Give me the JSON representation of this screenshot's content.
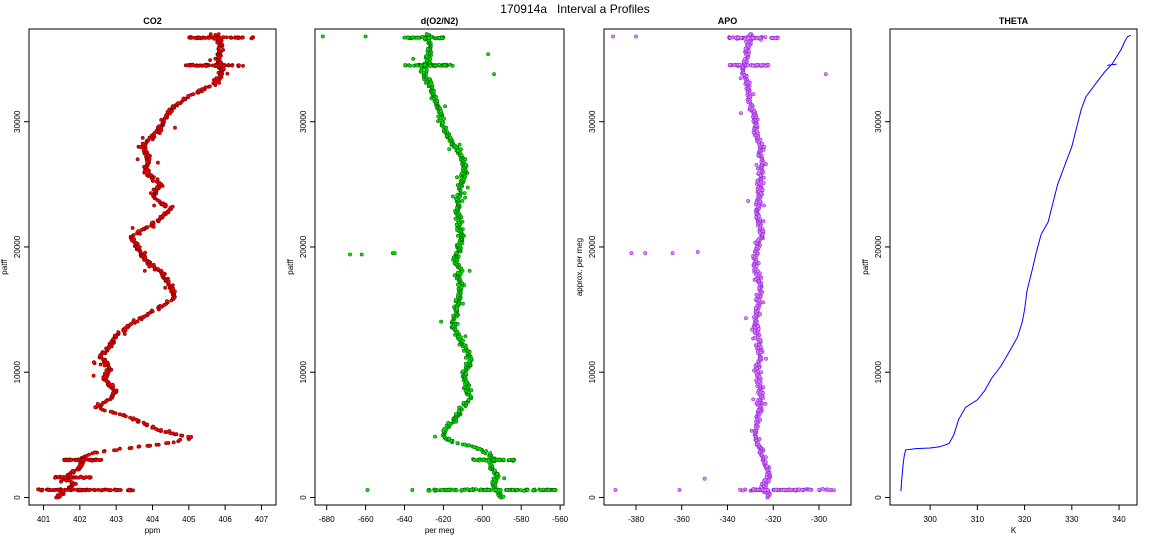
{
  "figure": {
    "title": "170914a   Interval a Profiles"
  },
  "chart_data": [
    {
      "type": "scatter",
      "title": "CO2",
      "xlabel": "ppm",
      "ylabel": "patff",
      "xlim": [
        400.6,
        407.4
      ],
      "ylim": [
        -600,
        37400
      ],
      "xticks": [
        401,
        402,
        403,
        404,
        405,
        406,
        407
      ],
      "yticks": [
        0,
        10000,
        20000,
        30000
      ],
      "colors": {
        "points": "#ff0000",
        "outline": "#7a0000"
      },
      "profile": [
        [
          0,
          401.4
        ],
        [
          600,
          401.6
        ],
        [
          1100,
          401.9
        ],
        [
          1500,
          401.5
        ],
        [
          2000,
          401.8
        ],
        [
          2600,
          402.1
        ],
        [
          3100,
          402.0
        ],
        [
          3600,
          402.4
        ],
        [
          4000,
          403.5
        ],
        [
          4400,
          404.6
        ],
        [
          4800,
          405.1
        ],
        [
          5300,
          404.2
        ],
        [
          6000,
          403.7
        ],
        [
          6600,
          403.2
        ],
        [
          7200,
          402.4
        ],
        [
          7800,
          402.8
        ],
        [
          8500,
          403.0
        ],
        [
          9400,
          402.7
        ],
        [
          10300,
          402.8
        ],
        [
          11300,
          402.6
        ],
        [
          12000,
          402.8
        ],
        [
          13000,
          403.0
        ],
        [
          14000,
          403.5
        ],
        [
          15000,
          404.1
        ],
        [
          16000,
          404.6
        ],
        [
          17000,
          404.5
        ],
        [
          18000,
          404.2
        ],
        [
          19000,
          403.8
        ],
        [
          20000,
          403.6
        ],
        [
          20800,
          403.4
        ],
        [
          21500,
          403.8
        ],
        [
          22300,
          404.2
        ],
        [
          23000,
          404.5
        ],
        [
          24000,
          404.0
        ],
        [
          25000,
          404.2
        ],
        [
          26000,
          403.8
        ],
        [
          27000,
          403.9
        ],
        [
          28000,
          403.7
        ],
        [
          29000,
          404.1
        ],
        [
          30000,
          404.3
        ],
        [
          31000,
          404.5
        ],
        [
          32000,
          405.0
        ],
        [
          33000,
          405.7
        ],
        [
          34000,
          405.9
        ],
        [
          35000,
          405.8
        ],
        [
          36000,
          405.9
        ],
        [
          36800,
          405.8
        ]
      ],
      "bands": [
        {
          "y": 600,
          "x": [
            400.8,
            403.5
          ]
        },
        {
          "y": 1600,
          "x": [
            401.3,
            402.3
          ]
        },
        {
          "y": 3000,
          "x": [
            401.5,
            402.6
          ]
        },
        {
          "y": 34500,
          "x": [
            404.9,
            406.5
          ]
        },
        {
          "y": 36700,
          "x": [
            405.0,
            406.8
          ]
        }
      ]
    },
    {
      "type": "scatter",
      "title": "d(O2/N2)",
      "xlabel": "per meg",
      "ylabel": "patff",
      "xlim": [
        -686,
        -558
      ],
      "ylim": [
        -600,
        37400
      ],
      "xticks": [
        -680,
        -660,
        -640,
        -620,
        -600,
        -580,
        -560
      ],
      "yticks": [
        0,
        10000,
        20000,
        30000
      ],
      "colors": {
        "points": "#00ee00",
        "outline": "#006600"
      },
      "profile": [
        [
          0,
          -590
        ],
        [
          600,
          -592
        ],
        [
          1100,
          -595
        ],
        [
          1600,
          -592
        ],
        [
          2100,
          -594
        ],
        [
          2600,
          -596
        ],
        [
          3100,
          -594
        ],
        [
          3600,
          -598
        ],
        [
          4000,
          -603
        ],
        [
          4400,
          -615
        ],
        [
          5000,
          -621
        ],
        [
          5600,
          -618
        ],
        [
          6200,
          -614
        ],
        [
          7000,
          -611
        ],
        [
          8000,
          -607
        ],
        [
          9000,
          -608
        ],
        [
          10000,
          -609
        ],
        [
          11000,
          -606
        ],
        [
          12000,
          -609
        ],
        [
          13000,
          -613
        ],
        [
          14000,
          -615
        ],
        [
          15000,
          -613
        ],
        [
          16000,
          -612
        ],
        [
          17000,
          -611
        ],
        [
          18000,
          -612
        ],
        [
          19000,
          -614
        ],
        [
          20000,
          -612
        ],
        [
          21000,
          -611
        ],
        [
          22000,
          -612
        ],
        [
          23000,
          -613
        ],
        [
          24000,
          -612
        ],
        [
          25000,
          -611
        ],
        [
          26000,
          -609
        ],
        [
          27000,
          -610
        ],
        [
          28000,
          -614
        ],
        [
          29000,
          -618
        ],
        [
          30000,
          -621
        ],
        [
          31000,
          -622
        ],
        [
          32000,
          -625
        ],
        [
          33000,
          -627
        ],
        [
          34000,
          -630
        ],
        [
          35000,
          -628
        ],
        [
          36000,
          -627
        ],
        [
          36800,
          -628
        ]
      ],
      "bands": [
        {
          "y": 600,
          "x": [
            -628,
            -562
          ]
        },
        {
          "y": 3000,
          "x": [
            -605,
            -583
          ]
        },
        {
          "y": 34500,
          "x": [
            -640,
            -615
          ]
        },
        {
          "y": 36700,
          "x": [
            -640,
            -620
          ]
        }
      ],
      "outliers": [
        [
          19400,
          -668
        ],
        [
          19400,
          -662
        ],
        [
          19500,
          -646
        ],
        [
          19500,
          -645
        ],
        [
          36800,
          -682
        ],
        [
          36800,
          -660
        ],
        [
          600,
          -659
        ],
        [
          600,
          -636
        ],
        [
          33800,
          -594
        ],
        [
          35400,
          -597
        ]
      ]
    },
    {
      "type": "scatter",
      "title": "APO",
      "xlabel": "",
      "ylabel": "approx. per meg",
      "xlim": [
        -394,
        -286
      ],
      "ylim": [
        -600,
        37400
      ],
      "xticks": [
        -380,
        -360,
        -340,
        -320,
        -300
      ],
      "yticks": [
        0,
        10000,
        20000,
        30000
      ],
      "colors": {
        "points": "#ee82ee",
        "outline": "#8a2be2"
      },
      "profile": [
        [
          0,
          -322
        ],
        [
          1000,
          -324
        ],
        [
          2000,
          -322
        ],
        [
          3000,
          -324
        ],
        [
          4000,
          -326
        ],
        [
          5000,
          -328
        ],
        [
          6000,
          -327
        ],
        [
          7000,
          -326
        ],
        [
          8000,
          -325
        ],
        [
          9000,
          -326
        ],
        [
          10000,
          -327
        ],
        [
          11000,
          -326
        ],
        [
          12000,
          -326
        ],
        [
          13000,
          -327
        ],
        [
          14000,
          -328
        ],
        [
          15000,
          -327
        ],
        [
          16000,
          -326
        ],
        [
          17000,
          -326
        ],
        [
          18000,
          -327
        ],
        [
          19000,
          -328
        ],
        [
          20000,
          -327
        ],
        [
          21000,
          -325
        ],
        [
          22000,
          -326
        ],
        [
          23000,
          -327
        ],
        [
          24000,
          -326
        ],
        [
          25000,
          -326
        ],
        [
          26000,
          -325
        ],
        [
          27000,
          -325
        ],
        [
          28000,
          -326
        ],
        [
          29000,
          -327
        ],
        [
          30000,
          -328
        ],
        [
          31000,
          -329
        ],
        [
          32000,
          -330
        ],
        [
          33000,
          -331
        ],
        [
          34000,
          -333
        ],
        [
          35000,
          -332
        ],
        [
          36000,
          -331
        ],
        [
          36800,
          -330
        ]
      ],
      "bands": [
        {
          "y": 600,
          "x": [
            -335,
            -292
          ]
        },
        {
          "y": 34500,
          "x": [
            -340,
            -322
          ]
        },
        {
          "y": 36700,
          "x": [
            -340,
            -318
          ]
        }
      ],
      "outliers": [
        [
          19500,
          -382
        ],
        [
          19500,
          -376
        ],
        [
          19500,
          -364
        ],
        [
          19600,
          -353
        ],
        [
          36800,
          -390
        ],
        [
          36800,
          -380
        ],
        [
          600,
          -389
        ],
        [
          600,
          -361
        ],
        [
          33800,
          -297
        ],
        [
          1500,
          -350
        ]
      ]
    },
    {
      "type": "line",
      "title": "THETA",
      "xlabel": "K",
      "ylabel": "patff",
      "xlim": [
        291.5,
        343.8
      ],
      "ylim": [
        -600,
        37400
      ],
      "xticks": [
        300,
        310,
        320,
        330,
        340
      ],
      "yticks": [
        0,
        10000,
        20000,
        30000
      ],
      "colors": {
        "line": "#0000ff"
      },
      "points": [
        [
          293.8,
          500
        ],
        [
          294.0,
          1500
        ],
        [
          294.3,
          2700
        ],
        [
          294.5,
          3300
        ],
        [
          294.8,
          3800
        ],
        [
          297,
          3900
        ],
        [
          300,
          3950
        ],
        [
          302,
          4050
        ],
        [
          304,
          4300
        ],
        [
          305,
          5000
        ],
        [
          306,
          6200
        ],
        [
          307.5,
          7200
        ],
        [
          310,
          7800
        ],
        [
          311.5,
          8500
        ],
        [
          313,
          9500
        ],
        [
          315,
          10500
        ],
        [
          317,
          11800
        ],
        [
          318.5,
          12800
        ],
        [
          319.5,
          14000
        ],
        [
          320,
          15000
        ],
        [
          320.5,
          16500
        ],
        [
          321.5,
          18000
        ],
        [
          322.5,
          19600
        ],
        [
          323.5,
          21000
        ],
        [
          325,
          22000
        ],
        [
          326,
          23500
        ],
        [
          327,
          25000
        ],
        [
          328.5,
          26500
        ],
        [
          330,
          28000
        ],
        [
          331,
          29500
        ],
        [
          332,
          31000
        ],
        [
          333,
          32000
        ],
        [
          335,
          33000
        ],
        [
          337,
          34000
        ],
        [
          338.5,
          34600
        ],
        [
          339.5,
          35200
        ],
        [
          340.5,
          35800
        ],
        [
          341.2,
          36400
        ],
        [
          341.8,
          36800
        ],
        [
          342.5,
          36900
        ]
      ],
      "extra_segment": [
        [
          337.5,
          34500
        ],
        [
          339.5,
          34600
        ]
      ]
    }
  ]
}
